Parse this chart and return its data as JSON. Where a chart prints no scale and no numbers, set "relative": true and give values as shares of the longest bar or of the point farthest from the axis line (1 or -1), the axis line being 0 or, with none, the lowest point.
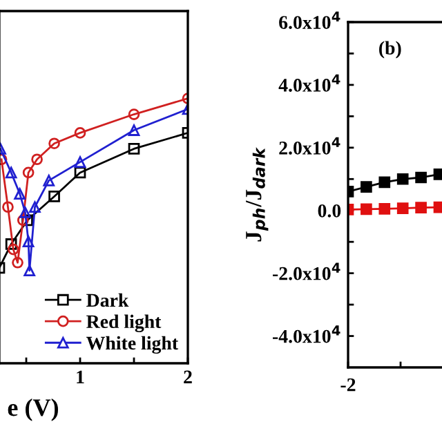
{
  "chart_data": [
    {
      "type": "line",
      "xlabel": "e (V)",
      "relative": true,
      "xlim": [
        0.25,
        2
      ],
      "xticks": [
        {
          "value": 0.5,
          "label": null
        },
        1,
        {
          "value": 1.5,
          "label": null
        },
        2
      ],
      "tick_labels": "x",
      "legend": "bottom right",
      "grid": false,
      "line_style": "solid",
      "series": [
        {
          "name": "Dark",
          "color": "#000000",
          "marker": "square",
          "x": [
            0.25,
            0.36,
            0.51,
            0.76,
            1,
            1.5,
            2
          ],
          "values": [
            0.36,
            0.45,
            0.54,
            0.63,
            0.72,
            0.81,
            0.87
          ]
        },
        {
          "name": "Red light",
          "color": "#d02020",
          "marker": "circle",
          "x": [
            0.27,
            0.33,
            0.38,
            0.42,
            0.47,
            0.52,
            0.6,
            0.76,
            1,
            1.5,
            2
          ],
          "values": [
            0.77,
            0.59,
            0.43,
            0.38,
            0.54,
            0.72,
            0.77,
            0.83,
            0.87,
            0.94,
            1
          ]
        },
        {
          "name": "White light",
          "color": "#2020d0",
          "marker": "triangle",
          "x": [
            0.26,
            0.36,
            0.44,
            0.49,
            0.52,
            0.53,
            0.58,
            0.71,
            1,
            1.5,
            2
          ],
          "values": [
            0.81,
            0.72,
            0.64,
            0.57,
            0.46,
            0.35,
            0.59,
            0.69,
            0.76,
            0.88,
            0.96
          ]
        }
      ]
    },
    {
      "type": "line",
      "ylabel": "J$_{ph}$/J$_{dark}$",
      "annotations": [
        "(b)",
        "-2"
      ],
      "categories": [
        null,
        null,
        null,
        null,
        null,
        null
      ],
      "ylim": [
        -50000,
        60000
      ],
      "yticks": [
        {
          "value": -40000,
          "label": "-4.0x10$^{4}$"
        },
        {
          "value": -30000,
          "label": null
        },
        {
          "value": -20000,
          "label": "-2.0x10$^{4}$"
        },
        {
          "value": -10000,
          "label": null
        },
        {
          "value": 0,
          "label": "0.0"
        },
        {
          "value": 10000,
          "label": null
        },
        {
          "value": 20000,
          "label": "2.0x10$^{4}$"
        },
        {
          "value": 30000,
          "label": null
        },
        {
          "value": 40000,
          "label": "4.0x10$^{4}$"
        },
        {
          "value": 50000,
          "label": null
        },
        {
          "value": 60000,
          "label": "6.0x10$^{4}$"
        }
      ],
      "grid": false,
      "legend": false,
      "marker": "square",
      "line_style": "solid",
      "series": [
        {
          "color": "#000000",
          "values": [
            6000,
            7500,
            9000,
            10000,
            10500,
            11500
          ]
        },
        {
          "color": "#e01010",
          "values": [
            300,
            400,
            500,
            700,
            900,
            1000
          ]
        }
      ]
    }
  ]
}
